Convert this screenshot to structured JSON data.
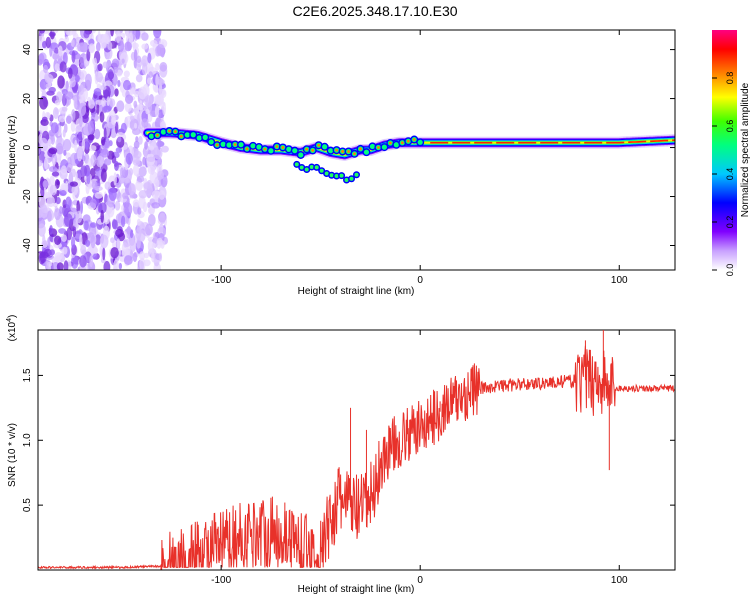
{
  "title": "C2E6.2025.348.17.10.E30",
  "chart_data": [
    {
      "type": "heatmap",
      "xlabel": "Height of straight line (km)",
      "ylabel": "Frequency (Hz)",
      "xlim": [
        -192,
        128
      ],
      "ylim": [
        -50,
        48
      ],
      "xticks": [
        -100,
        0,
        100
      ],
      "yticks": [
        -40,
        -20,
        0,
        20,
        40
      ],
      "ridge": {
        "x": [
          -137,
          -125,
          -112,
          -100,
          -90,
          -80,
          -70,
          -60,
          -52,
          -45,
          -38,
          -30,
          -25,
          -18,
          -10,
          0,
          20,
          60,
          100,
          128
        ],
        "freq": [
          6,
          6,
          5,
          2,
          0,
          -1,
          -1,
          -2,
          0,
          -2,
          -3,
          -1,
          -1,
          1,
          2,
          2,
          2,
          2,
          2,
          3
        ],
        "note": "narrow high-amplitude ridge near 0-6 Hz; diffuse noise for x < -128 km"
      },
      "colorbar": {
        "label": "Normalized spectral amplitude",
        "ticks": [
          0.0,
          0.2,
          0.4,
          0.6,
          0.8
        ],
        "tick_labels": [
          "0.0",
          "0.2",
          "0.4",
          "0.6",
          "0.8"
        ],
        "range": [
          0,
          1
        ],
        "colors": [
          "#ffffff",
          "#8000ff",
          "#0000ff",
          "#00ffff",
          "#00ff00",
          "#ffff00",
          "#ff8000",
          "#ff0000",
          "#ff0080"
        ]
      }
    },
    {
      "type": "line",
      "xlabel": "Height of straight line (km)",
      "ylabel": "SNR (10 * v/v)",
      "y_multiplier": "(x10",
      "y_multiplier_exp": "4",
      "y_multiplier_close": ")",
      "xlim": [
        -192,
        128
      ],
      "ylim": [
        0,
        1.85
      ],
      "xticks": [
        -100,
        0,
        100
      ],
      "yticks": [
        0.5,
        1.0,
        1.5
      ],
      "ytick_labels": [
        "0.5",
        "1.0",
        "1.5"
      ],
      "color": "#e8312a",
      "series": [
        {
          "name": "SNR",
          "x": [
            -192,
            -150,
            -130,
            -120,
            -110,
            -100,
            -90,
            -80,
            -70,
            -60,
            -55,
            -50,
            -45,
            -40,
            -35,
            -30,
            -25,
            -20,
            -15,
            -10,
            -5,
            0,
            5,
            10,
            15,
            20,
            25,
            30,
            40,
            50,
            60,
            70,
            80,
            90,
            95,
            100,
            110,
            120,
            128
          ],
          "y": [
            0.02,
            0.02,
            0.03,
            0.06,
            0.12,
            0.18,
            0.25,
            0.3,
            0.28,
            0.2,
            0.12,
            0.1,
            0.4,
            0.55,
            0.5,
            0.45,
            0.55,
            0.8,
            0.95,
            1.0,
            1.05,
            1.1,
            1.15,
            1.22,
            1.28,
            1.32,
            1.38,
            1.4,
            1.42,
            1.43,
            1.44,
            1.45,
            1.46,
            1.47,
            1.4,
            1.4,
            1.4,
            1.4,
            1.4
          ]
        }
      ],
      "peaks": [
        {
          "x": -68,
          "y": 0.52
        },
        {
          "x": -35,
          "y": 1.25
        },
        {
          "x": -27,
          "y": 1.08
        },
        {
          "x": -15,
          "y": 1.07
        },
        {
          "x": 10,
          "y": 1.3
        },
        {
          "x": 83,
          "y": 1.77
        },
        {
          "x": 92,
          "y": 1.85
        },
        {
          "x": 95,
          "y": 0.77
        }
      ]
    }
  ]
}
